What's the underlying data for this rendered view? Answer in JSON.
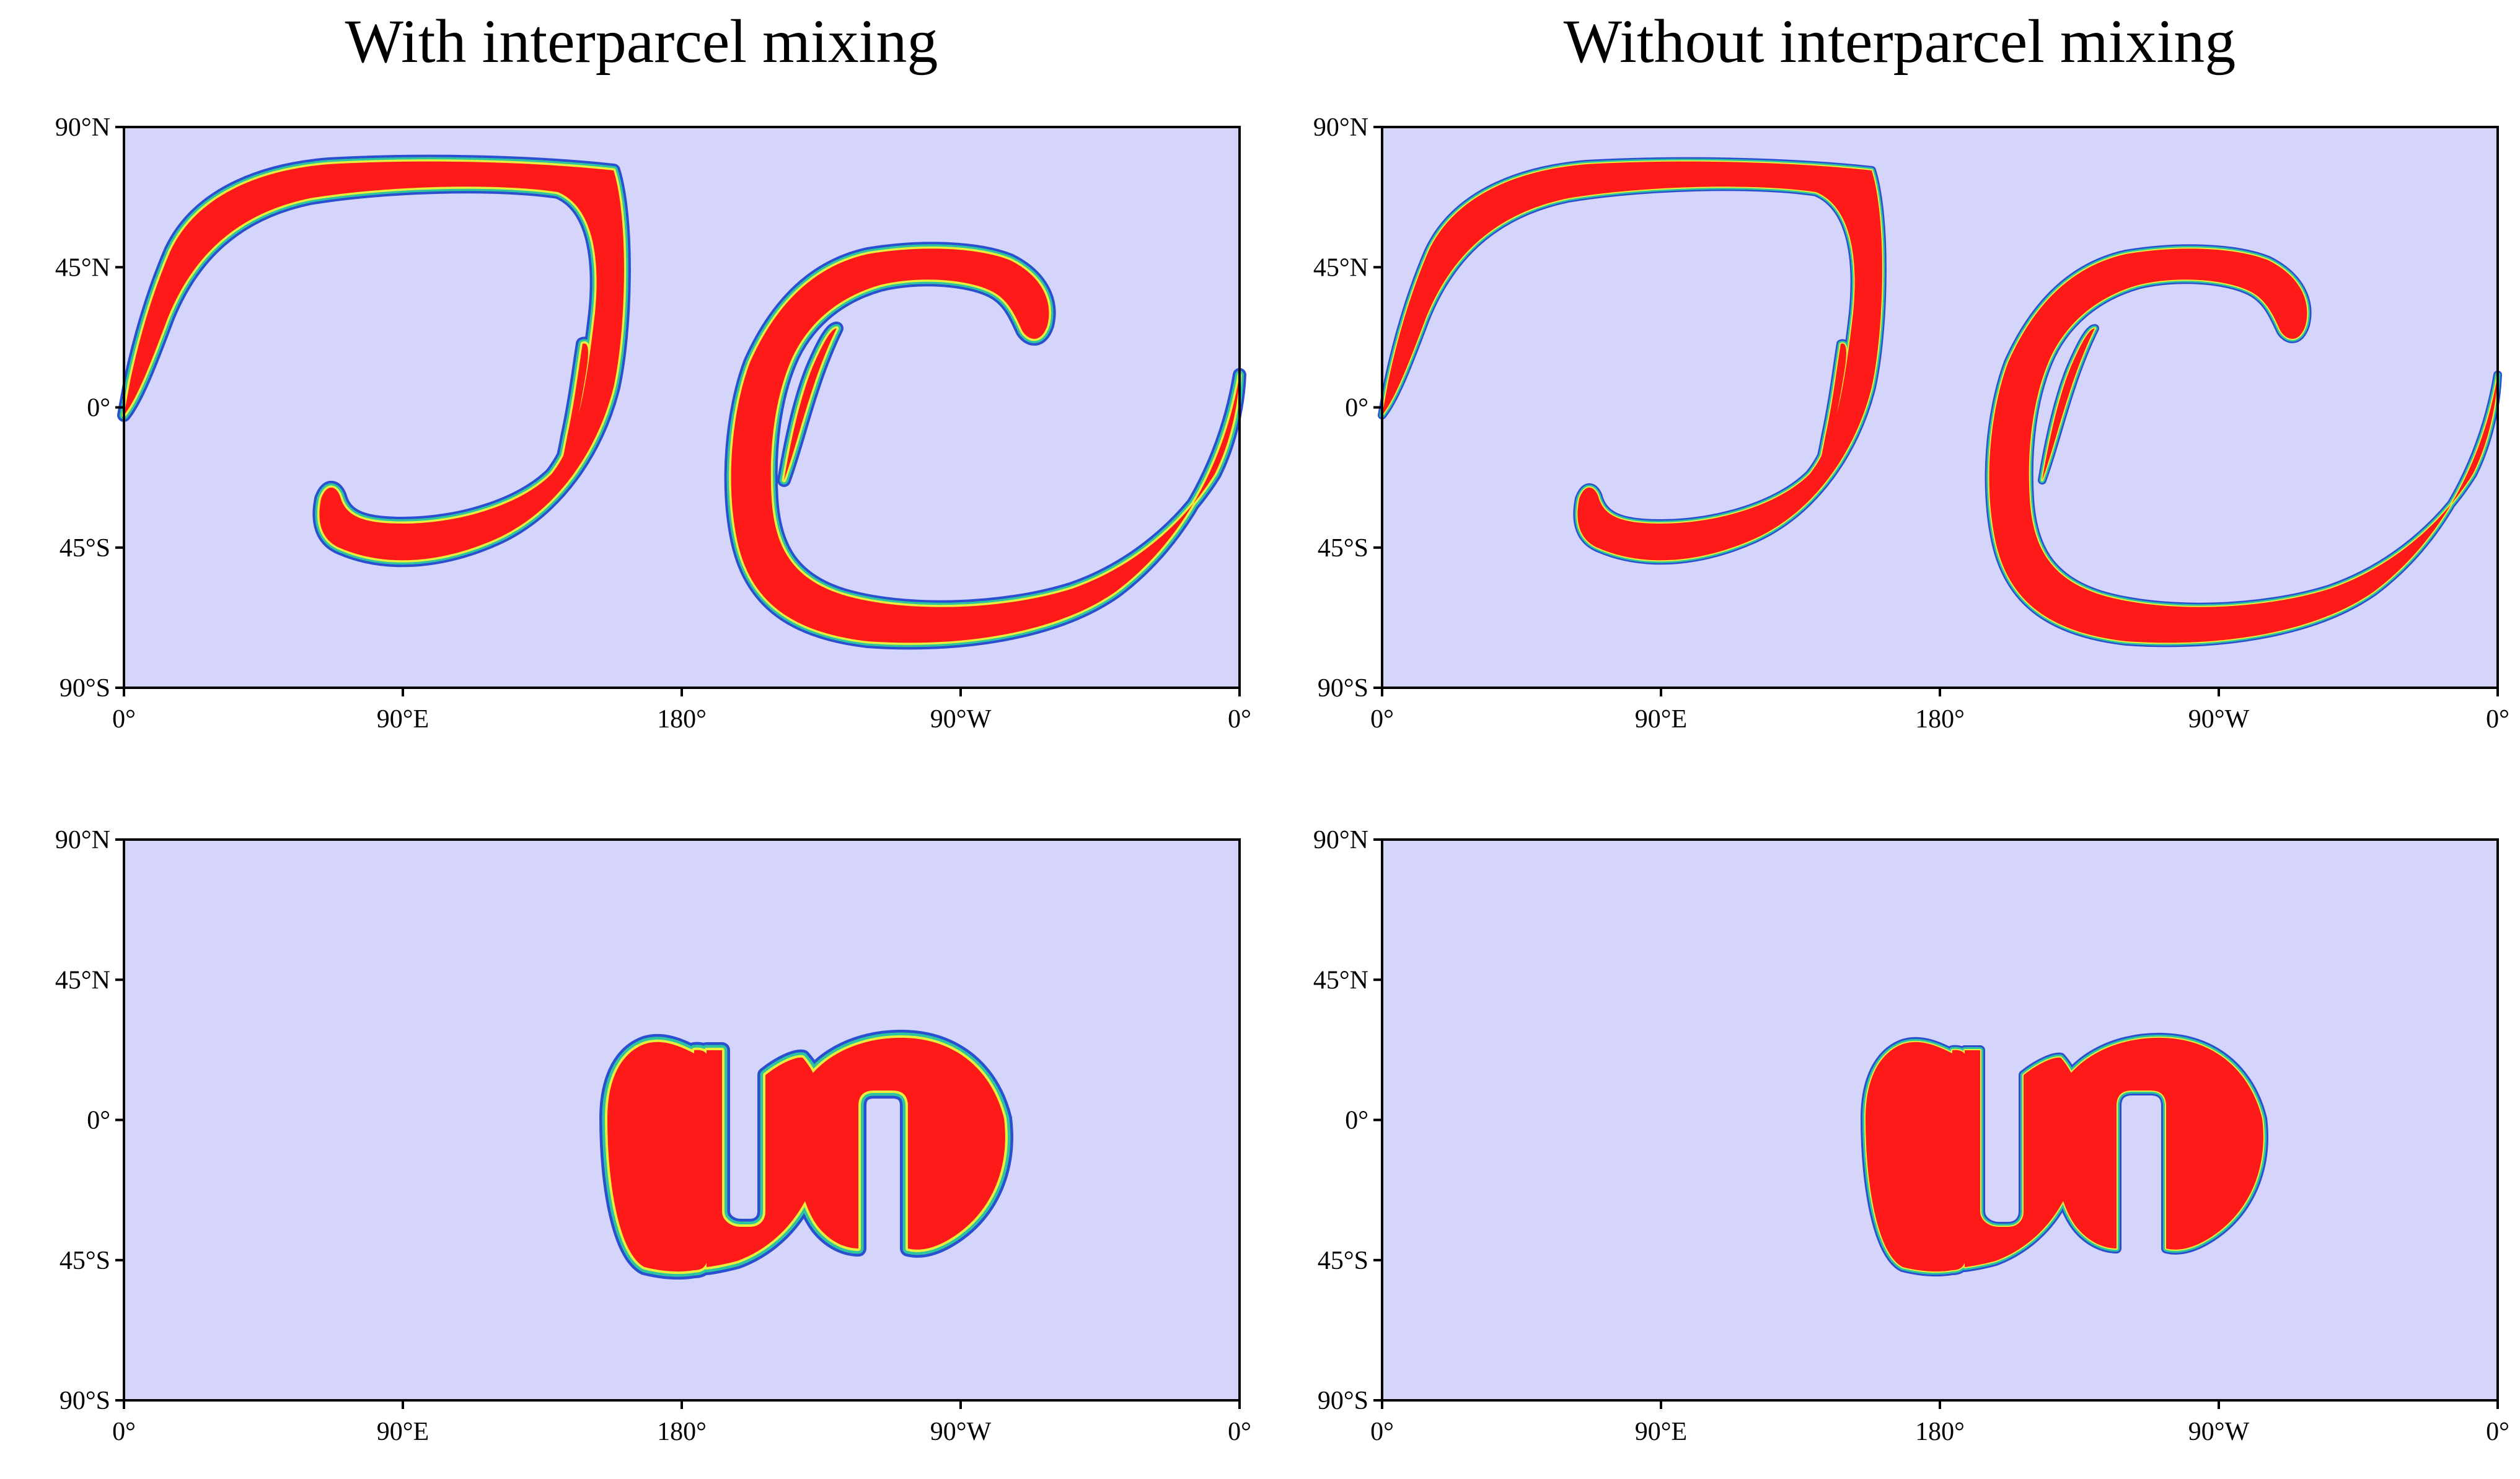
{
  "titles": {
    "left": "With interparcel mixing",
    "right": "Without interparcel mixing"
  },
  "axes": {
    "lat_labels": [
      "90°N",
      "45°N",
      "0°",
      "45°S",
      "90°S"
    ],
    "lon_labels": [
      "0°",
      "90°E",
      "180°",
      "90°W",
      "0°"
    ]
  },
  "colors": {
    "background": "#d5d5fb",
    "tracer_core": "#ff1a1a",
    "band_yellow": "#e6f03c",
    "band_green": "#2ec4a0",
    "band_blue": "#2a4fd0",
    "frame": "#000000"
  },
  "panels": [
    {
      "name": "top-left",
      "content": "deformed filaments, mixing"
    },
    {
      "name": "top-right",
      "content": "deformed filaments, no mixing"
    },
    {
      "name": "bottom-left",
      "content": "reconstructed slotted cylinders, mixing"
    },
    {
      "name": "bottom-right",
      "content": "reconstructed slotted cylinders, no mixing"
    }
  ]
}
